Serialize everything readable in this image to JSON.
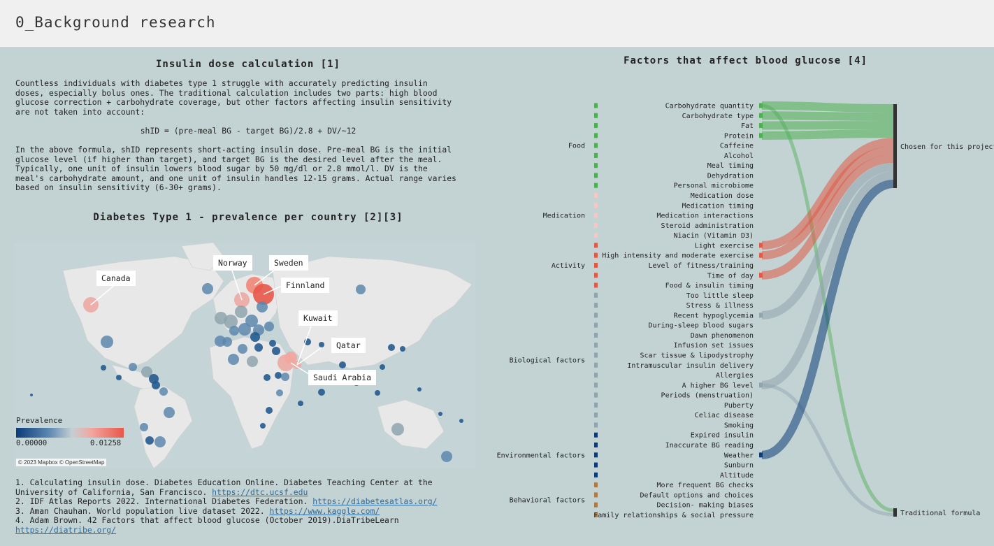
{
  "header": {
    "title": "0_Background research"
  },
  "insulin": {
    "title": "Insulin dose calculation [1]",
    "para1": "Countless individuals with diabetes type 1 struggle with accurately predicting insulin\ndoses, especially bolus ones. The traditional calculation includes two parts: high blood\nglucose correction + carbohydrate coverage, but other factors affecting insulin sensitivity\nare not taken into account:",
    "formula": "shID = (pre-meal BG - target BG)/2.8 + DV/~12",
    "para2": "In the above formula, shID represents short-acting insulin dose. Pre-meal BG is the initial\nglucose level (if higher than target), and target BG is the desired level after the meal.\nTypically, one unit of insulin lowers blood sugar by 50 mg/dl or 2.8 mmol/l. DV is the\nmeal's carbohydrate amount, and one unit of insulin handles 12-15 grams. Actual range varies\nbased on insulin sensitivity (6-30+ grams)."
  },
  "map": {
    "title": "Diabetes Type 1 - prevalence per country [2][3]",
    "callouts": [
      "Canada",
      "Norway",
      "Sweden",
      "Finnland",
      "Kuwait",
      "Qatar",
      "Saudi Arabia"
    ],
    "legend_title": "Prevalence",
    "legend_min": "0.00000",
    "legend_max": "0.01258",
    "attribution": "© 2023 Mapbox © OpenStreetMap",
    "colors": {
      "low": "#0b3c79",
      "mid": "#c5cfd3",
      "high": "#e8574a"
    }
  },
  "references": [
    {
      "text": "1. Calculating insulin dose. Diabetes Education Online. Diabetes Teaching Center at the\nUniversity of California, San Francisco. ",
      "link": "https://dtc.ucsf.edu"
    },
    {
      "text": "2. IDF Atlas Reports 2022. International Diabetes Federation. ",
      "link": "https://diabetesatlas.org/"
    },
    {
      "text": "3. Aman Chauhan. World population live dataset 2022. ",
      "link": "https://www.kaggle.com/"
    },
    {
      "text": "4. Adam Brown. 42 Factors that affect blood glucose (October 2019).DiaTribeLearn\n",
      "link": "https://diatribe.org/"
    }
  ],
  "factors": {
    "title": "Factors that affect blood glucose [4]",
    "groups": [
      {
        "name": "Food",
        "color": "#4caf50",
        "items": [
          "Carbohydrate quantity",
          "Carbohydrate type",
          "Fat",
          "Protein",
          "Caffeine",
          "Alcohol",
          "Meal timing",
          "Dehydration",
          "Personal microbiome"
        ],
        "chosen": [
          "Carbohydrate quantity",
          "Carbohydrate type",
          "Fat",
          "Protein"
        ]
      },
      {
        "name": "Medication",
        "color": "#f2c9c6",
        "items": [
          "Medication dose",
          "Medication timing",
          "Medication interactions",
          "Steroid administration",
          "Niacin (Vitamin D3)"
        ],
        "chosen": []
      },
      {
        "name": "Activity",
        "color": "#e05a45",
        "items": [
          "Light exercise",
          "High intensity and moderate exercise",
          "Level of fitness/training",
          "Time of day",
          "Food & insulin timing"
        ],
        "chosen": [
          "Light exercise",
          "High intensity and moderate exercise",
          "Time of day"
        ]
      },
      {
        "name": "Biological factors",
        "color": "#8fa4ad",
        "items": [
          "Too little sleep",
          "Stress & illness",
          "Recent hypoglycemia",
          "During-sleep blood sugars",
          "Dawn phenomenon",
          "Infusion set issues",
          "Scar tissue & lipodystrophy",
          "Intramuscular insulin delivery",
          "Allergies",
          "A higher BG level",
          "Periods (menstruation)",
          "Puberty",
          "Celiac disease",
          "Smoking"
        ],
        "chosen": [
          "Recent hypoglycemia",
          "A higher BG level"
        ]
      },
      {
        "name": "Environmental factors",
        "color": "#0b3c79",
        "items": [
          "Expired insulin",
          "Inaccurate BG reading",
          "Weather",
          "Sunburn",
          "Altitude"
        ],
        "chosen": [
          "Weather"
        ]
      },
      {
        "name": "Behavioral factors",
        "color": "#b07a45",
        "items": [
          "More frequent BG checks",
          "Default options and choices",
          "Decision- making biases",
          "Family relationships & social pressure"
        ],
        "chosen": []
      }
    ],
    "targets": {
      "chosen": "Chosen for this project",
      "traditional": "Traditional formula"
    },
    "traditional_sources": [
      "Carbohydrate quantity",
      "A higher BG level"
    ]
  }
}
